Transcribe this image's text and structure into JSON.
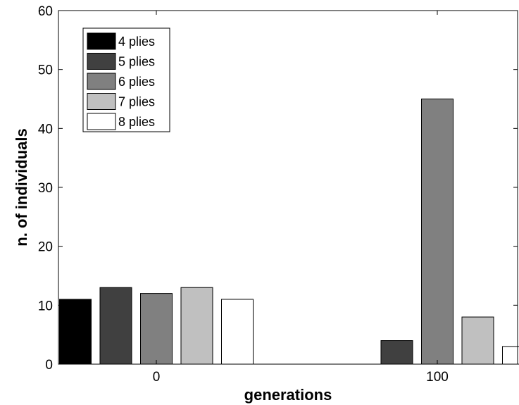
{
  "chart_data": {
    "type": "bar",
    "xlabel": "generations",
    "ylabel": "n. of individuals",
    "categories": [
      "0",
      "100"
    ],
    "series": [
      {
        "name": "4 plies",
        "color": "#000000",
        "values": [
          11,
          0
        ]
      },
      {
        "name": "5 plies",
        "color": "#404040",
        "values": [
          13,
          4
        ]
      },
      {
        "name": "6 plies",
        "color": "#808080",
        "values": [
          12,
          45
        ]
      },
      {
        "name": "7 plies",
        "color": "#c0c0c0",
        "values": [
          13,
          8
        ]
      },
      {
        "name": "8 plies",
        "color": "#ffffff",
        "values": [
          11,
          3
        ]
      }
    ],
    "ylim": [
      0,
      60
    ],
    "yticks": [
      0,
      10,
      20,
      30,
      40,
      50,
      60
    ],
    "grid": false,
    "legend_position": "top-left"
  }
}
